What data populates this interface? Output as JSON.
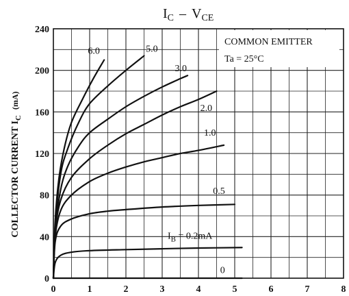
{
  "chart_data": {
    "type": "line",
    "title": {
      "main": "I",
      "main_sub": "C",
      "dash": "–",
      "v": "V",
      "v_sub": "CE"
    },
    "ylabel": {
      "text": "COLLECTOR CURRENT  I",
      "sub": "C",
      "unit": "(mA)"
    },
    "xlabel": "",
    "xlim": [
      0,
      8
    ],
    "ylim": [
      0,
      240
    ],
    "x_ticks": [
      "0",
      "1",
      "2",
      "3",
      "4",
      "5",
      "6",
      "7",
      "8"
    ],
    "y_ticks": [
      "0",
      "40",
      "80",
      "120",
      "160",
      "200",
      "240"
    ],
    "grid": true,
    "annotation": {
      "line1": "COMMON EMITTER",
      "line2": "Ta = 25°C"
    },
    "series": [
      {
        "name": "6.0",
        "label": "6.0",
        "points": [
          [
            0,
            0
          ],
          [
            0.05,
            55
          ],
          [
            0.15,
            95
          ],
          [
            0.3,
            125
          ],
          [
            0.5,
            150
          ],
          [
            0.8,
            172
          ],
          [
            1.1,
            192
          ],
          [
            1.4,
            210
          ]
        ]
      },
      {
        "name": "5.0",
        "label": "5.0",
        "points": [
          [
            0,
            0
          ],
          [
            0.05,
            50
          ],
          [
            0.2,
            100
          ],
          [
            0.4,
            125
          ],
          [
            0.7,
            150
          ],
          [
            1.0,
            168
          ],
          [
            1.5,
            185
          ],
          [
            2.0,
            200
          ],
          [
            2.5,
            214
          ]
        ]
      },
      {
        "name": "3.0",
        "label": "3.0",
        "points": [
          [
            0,
            0
          ],
          [
            0.05,
            45
          ],
          [
            0.2,
            85
          ],
          [
            0.4,
            108
          ],
          [
            0.7,
            127
          ],
          [
            1.0,
            140
          ],
          [
            1.5,
            153
          ],
          [
            2.0,
            165
          ],
          [
            2.5,
            175
          ],
          [
            3.0,
            184
          ],
          [
            3.5,
            192
          ],
          [
            3.7,
            195
          ]
        ]
      },
      {
        "name": "2.0",
        "label": "2.0",
        "points": [
          [
            0,
            0
          ],
          [
            0.05,
            45
          ],
          [
            0.2,
            75
          ],
          [
            0.5,
            97
          ],
          [
            1.0,
            115
          ],
          [
            1.5,
            128
          ],
          [
            2.0,
            139
          ],
          [
            2.5,
            148
          ],
          [
            3.0,
            157
          ],
          [
            3.5,
            165
          ],
          [
            4.0,
            172
          ],
          [
            4.5,
            180
          ]
        ]
      },
      {
        "name": "1.0",
        "label": "1.0",
        "points": [
          [
            0,
            0
          ],
          [
            0.05,
            40
          ],
          [
            0.2,
            65
          ],
          [
            0.5,
            80
          ],
          [
            1.0,
            93
          ],
          [
            1.5,
            101
          ],
          [
            2.0,
            107
          ],
          [
            2.5,
            112
          ],
          [
            3.0,
            116
          ],
          [
            3.5,
            120
          ],
          [
            4.0,
            123
          ],
          [
            4.7,
            128
          ]
        ]
      },
      {
        "name": "0.5",
        "label": "0.5",
        "points": [
          [
            0,
            0
          ],
          [
            0.05,
            35
          ],
          [
            0.2,
            50
          ],
          [
            0.5,
            57
          ],
          [
            1.0,
            62
          ],
          [
            1.5,
            64.5
          ],
          [
            2.0,
            66
          ],
          [
            3.0,
            68.5
          ],
          [
            4.0,
            70
          ],
          [
            5.0,
            71
          ]
        ]
      },
      {
        "name": "0.2",
        "label": "I",
        "label_sub": "B",
        "label_rest": " = 0.2mA",
        "points": [
          [
            0,
            0
          ],
          [
            0.05,
            15
          ],
          [
            0.2,
            22
          ],
          [
            0.5,
            25
          ],
          [
            1.0,
            26.5
          ],
          [
            2.0,
            27.5
          ],
          [
            3.0,
            28.3
          ],
          [
            4.0,
            29
          ],
          [
            5.2,
            29.5
          ]
        ]
      },
      {
        "name": "0",
        "label": "0",
        "points": [
          [
            0,
            0
          ],
          [
            5.2,
            0
          ]
        ]
      }
    ]
  }
}
